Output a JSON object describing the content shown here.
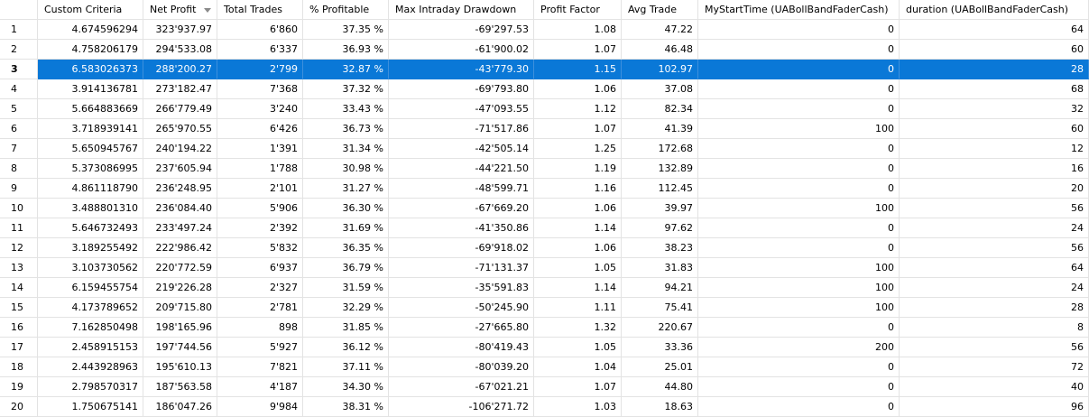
{
  "columns": [
    "",
    "Custom Criteria",
    "Net Profit",
    "Total Trades",
    "% Profitable",
    "Max Intraday Drawdown",
    "Profit Factor",
    "Avg Trade",
    "MyStartTime (UABollBandFaderCash)",
    "duration (UABollBandFaderCash)"
  ],
  "sorted_column_icon": "sort-descending-icon",
  "selected_row": 3,
  "colors": {
    "selection": "#0a78d7",
    "grid": "#e3e3e3"
  },
  "rows": [
    [
      "1",
      "4.674596294",
      "323'937.97",
      "6'860",
      "37.35 %",
      "-69'297.53",
      "1.08",
      "47.22",
      "0",
      "64"
    ],
    [
      "2",
      "4.758206179",
      "294'533.08",
      "6'337",
      "36.93 %",
      "-61'900.02",
      "1.07",
      "46.48",
      "0",
      "60"
    ],
    [
      "3",
      "6.583026373",
      "288'200.27",
      "2'799",
      "32.87 %",
      "-43'779.30",
      "1.15",
      "102.97",
      "0",
      "28"
    ],
    [
      "4",
      "3.914136781",
      "273'182.47",
      "7'368",
      "37.32 %",
      "-69'793.80",
      "1.06",
      "37.08",
      "0",
      "68"
    ],
    [
      "5",
      "5.664883669",
      "266'779.49",
      "3'240",
      "33.43 %",
      "-47'093.55",
      "1.12",
      "82.34",
      "0",
      "32"
    ],
    [
      "6",
      "3.718939141",
      "265'970.55",
      "6'426",
      "36.73 %",
      "-71'517.86",
      "1.07",
      "41.39",
      "100",
      "60"
    ],
    [
      "7",
      "5.650945767",
      "240'194.22",
      "1'391",
      "31.34 %",
      "-42'505.14",
      "1.25",
      "172.68",
      "0",
      "12"
    ],
    [
      "8",
      "5.373086995",
      "237'605.94",
      "1'788",
      "30.98 %",
      "-44'221.50",
      "1.19",
      "132.89",
      "0",
      "16"
    ],
    [
      "9",
      "4.861118790",
      "236'248.95",
      "2'101",
      "31.27 %",
      "-48'599.71",
      "1.16",
      "112.45",
      "0",
      "20"
    ],
    [
      "10",
      "3.488801310",
      "236'084.40",
      "5'906",
      "36.30 %",
      "-67'669.20",
      "1.06",
      "39.97",
      "100",
      "56"
    ],
    [
      "11",
      "5.646732493",
      "233'497.24",
      "2'392",
      "31.69 %",
      "-41'350.86",
      "1.14",
      "97.62",
      "0",
      "24"
    ],
    [
      "12",
      "3.189255492",
      "222'986.42",
      "5'832",
      "36.35 %",
      "-69'918.02",
      "1.06",
      "38.23",
      "0",
      "56"
    ],
    [
      "13",
      "3.103730562",
      "220'772.59",
      "6'937",
      "36.79 %",
      "-71'131.37",
      "1.05",
      "31.83",
      "100",
      "64"
    ],
    [
      "14",
      "6.159455754",
      "219'226.28",
      "2'327",
      "31.59 %",
      "-35'591.83",
      "1.14",
      "94.21",
      "100",
      "24"
    ],
    [
      "15",
      "4.173789652",
      "209'715.80",
      "2'781",
      "32.29 %",
      "-50'245.90",
      "1.11",
      "75.41",
      "100",
      "28"
    ],
    [
      "16",
      "7.162850498",
      "198'165.96",
      "898",
      "31.85 %",
      "-27'665.80",
      "1.32",
      "220.67",
      "0",
      "8"
    ],
    [
      "17",
      "2.458915153",
      "197'744.56",
      "5'927",
      "36.12 %",
      "-80'419.43",
      "1.05",
      "33.36",
      "200",
      "56"
    ],
    [
      "18",
      "2.443928963",
      "195'610.13",
      "7'821",
      "37.11 %",
      "-80'039.20",
      "1.04",
      "25.01",
      "0",
      "72"
    ],
    [
      "19",
      "2.798570317",
      "187'563.58",
      "4'187",
      "34.30 %",
      "-67'021.21",
      "1.07",
      "44.80",
      "0",
      "40"
    ],
    [
      "20",
      "1.750675141",
      "186'047.26",
      "9'984",
      "38.31 %",
      "-106'271.72",
      "1.03",
      "18.63",
      "0",
      "96"
    ]
  ]
}
